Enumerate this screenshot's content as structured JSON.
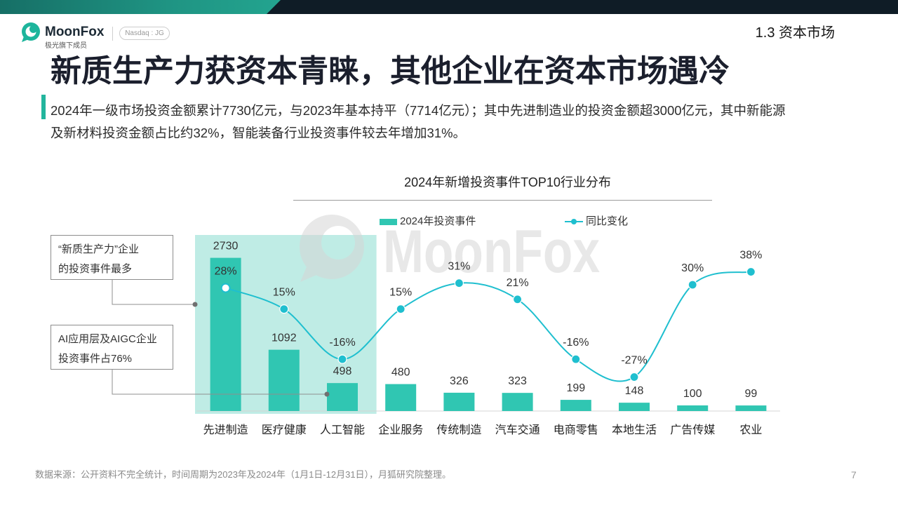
{
  "header": {
    "logo_icon": "moonfox-logo-icon",
    "brand": "MoonFox",
    "brand_sub": "极光旗下成员",
    "ticker": "Nasdaq : JG",
    "section": "1.3 资本市场"
  },
  "title": "新质生产力获资本青睐，其他企业在资本市场遇冷",
  "summary": {
    "lines": [
      "2024年一级市场投资金额累计7730亿元，与2023年基本持平（7714亿元）；其中先进制造业的投资金额超3000亿元，其中新能源",
      "及新材料投资金额占比约32%，智能装备行业投资事件较去年增加31%。"
    ]
  },
  "chart_data": {
    "type": "bar",
    "title": "2024年新增投资事件TOP10行业分布",
    "categories": [
      "先进制造",
      "医疗健康",
      "人工智能",
      "企业服务",
      "传统制造",
      "汽车交通",
      "电商零售",
      "本地生活",
      "广告传媒",
      "农业"
    ],
    "series": [
      {
        "name": "2024年投资事件",
        "type": "bar",
        "values": [
          2730,
          1092,
          498,
          480,
          326,
          323,
          199,
          148,
          100,
          99
        ]
      },
      {
        "name": "同比变化",
        "type": "line",
        "smooth": true,
        "values": [
          28,
          15,
          -16,
          15,
          31,
          21,
          -16,
          -27,
          30,
          38
        ],
        "labels": [
          "28%",
          "15%",
          "-16%",
          "15%",
          "31%",
          "21%",
          "-16%",
          "-27%",
          "30%",
          "38%"
        ]
      }
    ],
    "bar_ylim": [
      0,
      3750
    ],
    "line_ylim": [
      -48,
      82
    ],
    "grid": false,
    "legend": "top-center",
    "highlight_range": [
      "先进制造",
      "人工智能"
    ],
    "annotations": [
      {
        "lines": [
          "“新质生产力”企业",
          "的投资事件最多"
        ],
        "target": "先进制造"
      },
      {
        "lines": [
          "AI应用层及AIGC企业",
          "投资事件占76%"
        ],
        "target": "人工智能"
      }
    ]
  },
  "watermark": "MoonFox",
  "footer": {
    "source": "数据来源：公开资料不完全统计，时间周期为2023年及2024年（1月1日-12月31日），月狐研究院整理。",
    "page_number": "7"
  },
  "colors": {
    "bar": "#30c6b2",
    "line": "#1fbfcf",
    "highlight": "#bfece5",
    "accent": "#22b59d",
    "title": "#1b1f2d"
  }
}
